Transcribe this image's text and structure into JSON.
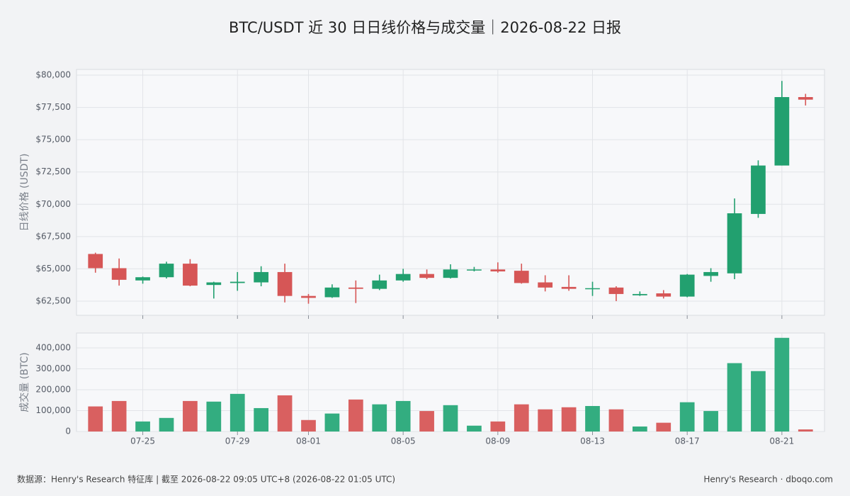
{
  "title": "BTC/USDT 近 30 日日线价格与成交量｜2026-08-22 日报",
  "footer_left": "数据源：Henry's Research 特征库 | 截至 2026-08-22 09:05 UTC+8 (2026-08-22 01:05 UTC)",
  "footer_right": "Henry's Research · dboqo.com",
  "chart_data": [
    {
      "type": "candlestick",
      "ylabel": "日线价格 (USDT)",
      "categories": [
        null,
        null,
        "07-25",
        null,
        null,
        null,
        "07-29",
        null,
        null,
        "08-01",
        null,
        null,
        null,
        "08-05",
        null,
        null,
        null,
        "08-09",
        null,
        null,
        null,
        "08-13",
        null,
        null,
        null,
        "08-17",
        null,
        null,
        null,
        "08-21",
        null
      ],
      "open": [
        66150,
        65050,
        64100,
        64350,
        65400,
        63750,
        63900,
        63950,
        64750,
        62900,
        62800,
        63550,
        63450,
        64100,
        64600,
        64300,
        64900,
        64950,
        64850,
        63950,
        63600,
        63450,
        63550,
        62950,
        63100,
        62850,
        64450,
        64650,
        69250,
        73000,
        78300
      ],
      "high": [
        66250,
        65800,
        64400,
        65550,
        65750,
        64000,
        64750,
        65200,
        65400,
        63050,
        63800,
        64100,
        64550,
        65000,
        64950,
        65350,
        65150,
        65500,
        65400,
        64500,
        64500,
        64000,
        63650,
        63250,
        63350,
        64600,
        65050,
        70450,
        73400,
        79550,
        78550
      ],
      "low": [
        64700,
        63700,
        63850,
        64250,
        63650,
        62700,
        63300,
        63650,
        62400,
        62300,
        62750,
        62350,
        63350,
        64000,
        64200,
        64250,
        64800,
        64700,
        63850,
        63250,
        63300,
        62900,
        62500,
        62900,
        62700,
        62800,
        64000,
        64200,
        68950,
        73000,
        77650
      ],
      "close": [
        65050,
        64150,
        64350,
        65400,
        63700,
        63950,
        64000,
        64750,
        62900,
        62750,
        63550,
        63450,
        64100,
        64600,
        64300,
        64950,
        64950,
        64800,
        63900,
        63550,
        63450,
        63500,
        63050,
        63050,
        62850,
        64550,
        64750,
        69300,
        73000,
        78300,
        78100
      ],
      "up_color": "#22a06f",
      "down_color": "#d65656",
      "ylim": [
        61400,
        80440
      ],
      "yticks": [
        {
          "value": 62500,
          "label": "$62,500"
        },
        {
          "value": 65000,
          "label": "$65,000"
        },
        {
          "value": 67500,
          "label": "$67,500"
        },
        {
          "value": 70000,
          "label": "$70,000"
        },
        {
          "value": 72500,
          "label": "$72,500"
        },
        {
          "value": 75000,
          "label": "$75,000"
        },
        {
          "value": 77500,
          "label": "$77,500"
        },
        {
          "value": 80000,
          "label": "$80,000"
        }
      ],
      "grid": true
    },
    {
      "type": "bar",
      "ylabel": "成交量 (BTC)",
      "categories": [
        null,
        null,
        "07-25",
        null,
        null,
        null,
        "07-29",
        null,
        null,
        "08-01",
        null,
        null,
        null,
        "08-05",
        null,
        null,
        null,
        "08-09",
        null,
        null,
        null,
        "08-13",
        null,
        null,
        null,
        "08-17",
        null,
        null,
        null,
        "08-21",
        null
      ],
      "values": [
        120000,
        146000,
        48000,
        65000,
        146000,
        143000,
        180000,
        112000,
        173000,
        55000,
        86000,
        153000,
        130000,
        146000,
        98000,
        126000,
        28000,
        48000,
        130000,
        106000,
        116000,
        122000,
        106000,
        24000,
        42000,
        140000,
        98000,
        327000,
        289000,
        448000,
        10000
      ],
      "up_color": "#33ad80",
      "down_color": "#d96060",
      "ylim": [
        0,
        471000
      ],
      "yticks": [
        0,
        {
          "value": 100000,
          "label": "100,000"
        },
        {
          "value": 200000,
          "label": "200,000"
        },
        {
          "value": 300000,
          "label": "300,000"
        },
        {
          "value": 400000,
          "label": "400,000"
        }
      ],
      "grid": true
    }
  ]
}
